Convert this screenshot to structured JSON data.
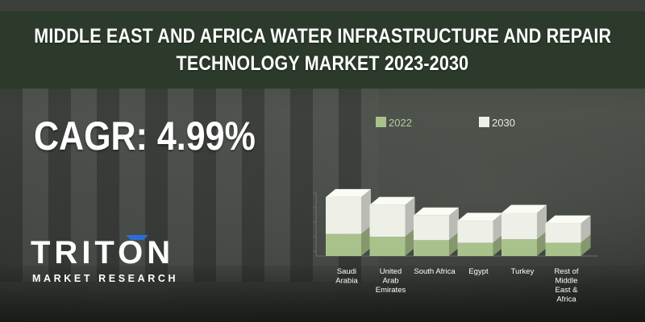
{
  "header": {
    "title_line1": "MIDDLE EAST AND AFRICA WATER INFRASTRUCTURE AND REPAIR",
    "title_line2": "TECHNOLOGY MARKET  2023-2030"
  },
  "cagr": {
    "text": "CAGR: 4.99%"
  },
  "logo": {
    "word": "TRITON",
    "tagline": "MARKET RESEARCH",
    "accent_color": "#2a6fd6"
  },
  "colors": {
    "header_bg": "#2b3a2a",
    "series_2022": "#a9c28c",
    "series_2030": "#eef0e8"
  },
  "chart_data": {
    "type": "bar",
    "stacked": true,
    "categories": [
      "Saudi Arabia",
      "United Arab Emirates",
      "South Africa",
      "Egypt",
      "Turkey",
      "Rest of Middle East & Africa"
    ],
    "category_label_lines": [
      [
        "Saudi",
        "Arabia"
      ],
      [
        "United",
        "Arab",
        "Emirates"
      ],
      [
        "South Africa"
      ],
      [
        "Egypt"
      ],
      [
        "Turkey"
      ],
      [
        "Rest of",
        "Middle",
        "East &",
        "Africa"
      ]
    ],
    "series": [
      {
        "name": "2022",
        "values": [
          25,
          22,
          18,
          15,
          19,
          15
        ]
      },
      {
        "name": "2030",
        "values": [
          42,
          36,
          28,
          25,
          30,
          22
        ]
      }
    ],
    "ylim": [
      0,
      75
    ],
    "grid": false,
    "legend": "top",
    "view": "3d"
  }
}
